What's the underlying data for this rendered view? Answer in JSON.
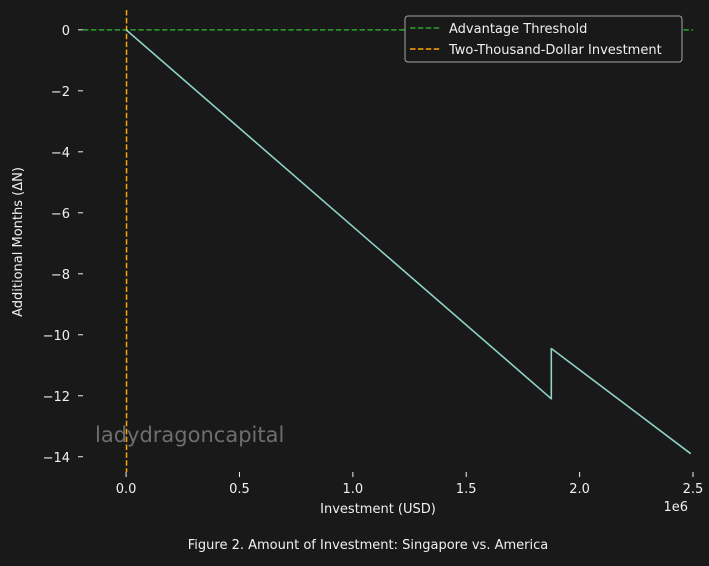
{
  "chart_data": {
    "type": "line",
    "caption": "Figure 2. Amount of Investment: Singapore vs. America",
    "xlabel": "Investment (USD)",
    "ylabel": "Additional Months (ΔN)",
    "x_offset_text": "1e6",
    "xlim": [
      -0.19,
      2.5
    ],
    "ylim": [
      -14.5,
      0.65
    ],
    "xticks": [
      0.0,
      0.5,
      1.0,
      1.5,
      2.0,
      2.5
    ],
    "xtick_labels": [
      "0.0",
      "0.5",
      "1.0",
      "1.5",
      "2.0",
      "2.5"
    ],
    "yticks": [
      0,
      -2,
      -4,
      -6,
      -8,
      -10,
      -12,
      -14
    ],
    "ytick_labels": [
      "0",
      "−2",
      "−4",
      "−6",
      "−8",
      "−10",
      "−12",
      "−14"
    ],
    "grid": false,
    "legend_position": "top-right",
    "series": [
      {
        "kind": "line",
        "color": "#8dd3c7",
        "x": [
          0.0,
          1.875,
          1.875,
          2.49
        ],
        "y": [
          0.0,
          -12.1,
          -10.45,
          -13.9
        ]
      },
      {
        "kind": "hline",
        "name": "Advantage Threshold",
        "color": "#2ca02c",
        "linestyle": "dashed",
        "y": 0
      },
      {
        "kind": "vline",
        "name": "Two-Thousand-Dollar Investment",
        "color": "#ffa500",
        "linestyle": "dashed",
        "x": 0.002
      }
    ],
    "legend": [
      {
        "label": "Advantage Threshold",
        "color": "#2ca02c",
        "linestyle": "dashed"
      },
      {
        "label": "Two-Thousand-Dollar Investment",
        "color": "#ffa500",
        "linestyle": "dashed"
      }
    ],
    "watermark": "ladydragoncapital"
  }
}
